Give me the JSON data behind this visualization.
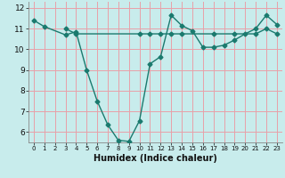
{
  "title": "",
  "xlabel": "Humidex (Indice chaleur)",
  "line1_x": [
    0,
    1,
    3,
    4,
    5,
    6,
    7,
    8,
    9,
    10,
    11,
    12,
    13,
    14,
    15,
    16,
    17,
    18,
    19,
    20,
    21,
    22,
    23
  ],
  "line1_y": [
    11.4,
    11.1,
    10.7,
    10.85,
    9.0,
    7.5,
    6.35,
    5.6,
    5.55,
    6.55,
    9.3,
    9.65,
    11.65,
    11.15,
    10.9,
    10.1,
    10.1,
    10.2,
    10.45,
    10.75,
    11.0,
    11.65,
    11.2
  ],
  "line2_x": [
    3,
    4,
    10,
    11,
    12,
    13,
    14,
    17,
    19,
    21,
    22,
    23
  ],
  "line2_y": [
    11.0,
    10.75,
    10.75,
    10.75,
    10.75,
    10.75,
    10.75,
    10.75,
    10.75,
    10.75,
    11.0,
    10.75
  ],
  "line_color": "#1a7a6e",
  "bg_color": "#c8ecec",
  "plot_bg_color": "#c8ecec",
  "grid_color": "#e8a0a8",
  "ylim": [
    5.5,
    12.3
  ],
  "xlim": [
    -0.5,
    23.5
  ],
  "yticks": [
    6,
    7,
    8,
    9,
    10,
    11,
    12
  ],
  "xticks": [
    0,
    1,
    2,
    3,
    4,
    5,
    6,
    7,
    8,
    9,
    10,
    11,
    12,
    13,
    14,
    15,
    16,
    17,
    18,
    19,
    20,
    21,
    22,
    23
  ],
  "markersize": 2.5,
  "linewidth": 1.0
}
